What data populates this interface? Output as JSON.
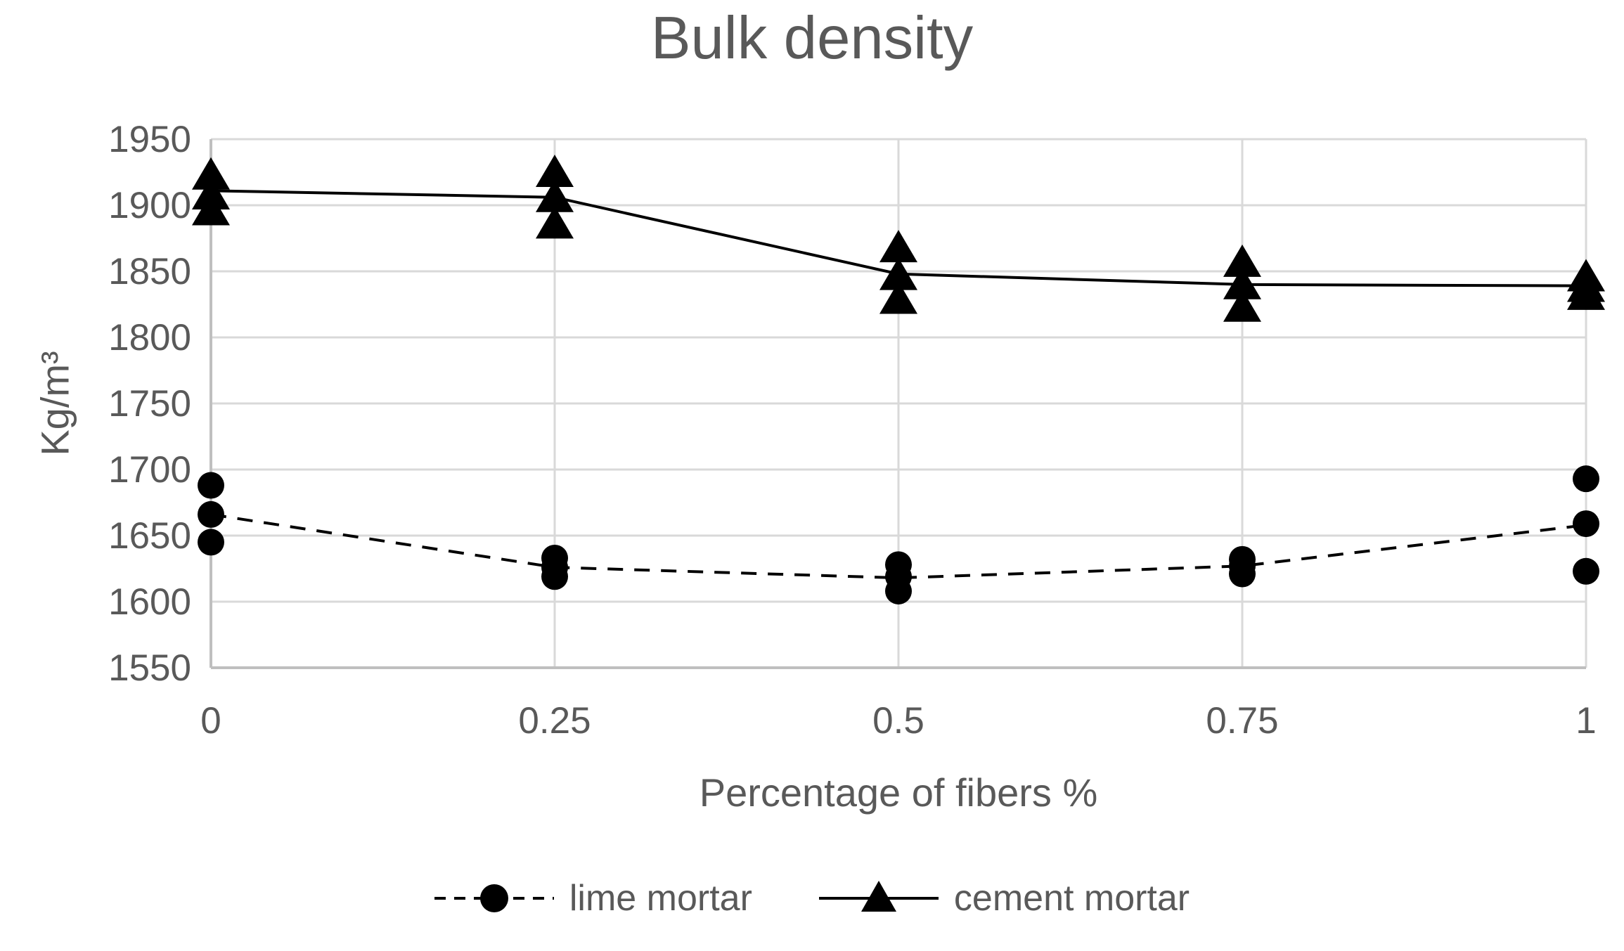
{
  "chart_data": {
    "type": "line",
    "title": "Bulk density",
    "xlabel": "Percentage of fibers %",
    "ylabel": "Kg/m³",
    "grid": true,
    "legend_position": "bottom",
    "xlim": [
      0,
      1
    ],
    "ylim": [
      1550,
      1950
    ],
    "x": [
      0,
      0.25,
      0.5,
      0.75,
      1
    ],
    "xticks": [
      0,
      0.25,
      0.5,
      0.75,
      1
    ],
    "xtick_labels": [
      "0",
      "0.25",
      "0.5",
      "0.75",
      "1"
    ],
    "yticks": [
      1550,
      1600,
      1650,
      1700,
      1750,
      1800,
      1850,
      1900,
      1950
    ],
    "series": [
      {
        "name": "lime mortar",
        "marker": "circle",
        "line_style": "dashed",
        "line": [
          1666,
          1626,
          1618,
          1627,
          1658
        ],
        "points": [
          [
            1688,
            1666,
            1645
          ],
          [
            1633,
            1626,
            1619
          ],
          [
            1628,
            1619,
            1608
          ],
          [
            1632,
            1627,
            1621
          ],
          [
            1693,
            1659,
            1623
          ]
        ]
      },
      {
        "name": "cement mortar",
        "marker": "triangle",
        "line_style": "solid",
        "line": [
          1911,
          1906,
          1848,
          1840,
          1839
        ],
        "points": [
          [
            1923,
            1908,
            1896
          ],
          [
            1925,
            1906,
            1886
          ],
          [
            1868,
            1847,
            1829
          ],
          [
            1857,
            1840,
            1823
          ],
          [
            1846,
            1838,
            1832
          ]
        ]
      }
    ],
    "colors": {
      "series": "#000000",
      "text": "#595959",
      "grid": "#d9d9d9",
      "axis": "#bfbfbf"
    }
  }
}
